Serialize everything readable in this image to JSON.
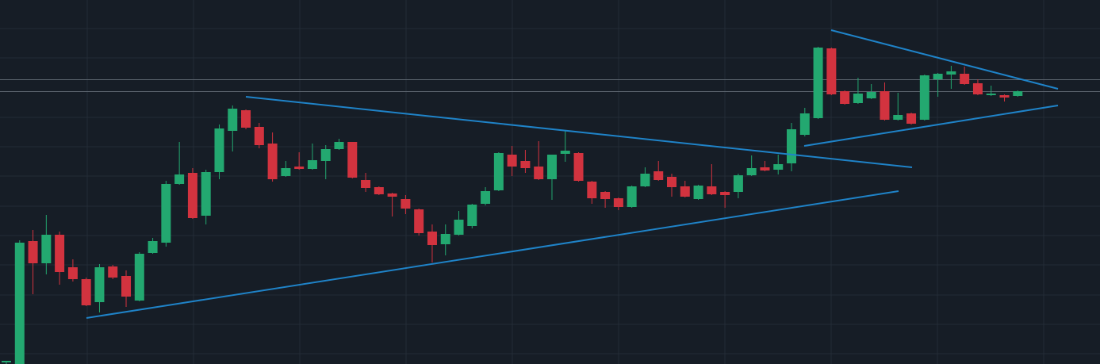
{
  "chart_data": {
    "type": "candlestick",
    "up_color": "#23a870",
    "down_color": "#d2333f",
    "ylim": [
      0,
      459
    ],
    "open": [
      2,
      0,
      155,
      127,
      163,
      122,
      107,
      78,
      123,
      111,
      80,
      140,
      153,
      227,
      241,
      187,
      242,
      294,
      320,
      299,
      278,
      237,
      249,
      246,
      256,
      271,
      280,
      232,
      223,
      215,
      208,
      195,
      167,
      151,
      163,
      174,
      202,
      219,
      264,
      256,
      249,
      233,
      265,
      266,
      230,
      217,
      209,
      198,
      224,
      243,
      236,
      224,
      208,
      224,
      217,
      217,
      238,
      248,
      245,
      253,
      289,
      310,
      398,
      344,
      329,
      335,
      344,
      308,
      316,
      308,
      359,
      365,
      366,
      354,
      339,
      339,
      338
    ],
    "high": [
      4,
      156,
      169,
      188,
      167,
      132,
      109,
      126,
      125,
      118,
      141,
      159,
      231,
      280,
      247,
      245,
      302,
      326,
      321,
      304,
      292,
      256,
      267,
      278,
      276,
      284,
      280,
      241,
      224,
      216,
      213,
      196,
      176,
      176,
      193,
      202,
      223,
      267,
      275,
      270,
      281,
      264,
      294,
      267,
      231,
      218,
      210,
      225,
      248,
      256,
      240,
      231,
      226,
      252,
      218,
      240,
      263,
      256,
      264,
      304,
      323,
      400,
      399,
      345,
      361,
      353,
      355,
      342,
      317,
      365,
      367,
      376,
      375,
      359,
      351,
      340,
      345
    ],
    "low": [
      0,
      0,
      88,
      113,
      100,
      104,
      73,
      65,
      107,
      72,
      79,
      139,
      148,
      226,
      183,
      176,
      233,
      268,
      296,
      272,
      230,
      236,
      245,
      245,
      233,
      270,
      234,
      217,
      213,
      186,
      189,
      162,
      128,
      137,
      162,
      171,
      200,
      218,
      237,
      241,
      232,
      207,
      255,
      230,
      202,
      197,
      194,
      197,
      223,
      231,
      211,
      210,
      207,
      213,
      197,
      209,
      237,
      243,
      239,
      243,
      287,
      309,
      339,
      327,
      328,
      334,
      307,
      307,
      302,
      307,
      337,
      347,
      352,
      339,
      338,
      331,
      337
    ],
    "close": [
      4,
      153,
      127,
      163,
      116,
      107,
      74,
      122,
      109,
      85,
      139,
      155,
      227,
      239,
      184,
      242,
      297,
      322,
      298,
      276,
      233,
      247,
      246,
      257,
      271,
      280,
      235,
      222,
      214,
      211,
      196,
      165,
      150,
      164,
      182,
      201,
      218,
      266,
      249,
      247,
      233,
      264,
      269,
      231,
      209,
      208,
      198,
      224,
      240,
      232,
      223,
      211,
      225,
      214,
      213,
      238,
      247,
      244,
      252,
      296,
      316,
      399,
      340,
      328,
      341,
      343,
      308,
      314,
      303,
      364,
      366,
      369,
      353,
      340,
      341,
      336,
      344
    ]
  }
}
